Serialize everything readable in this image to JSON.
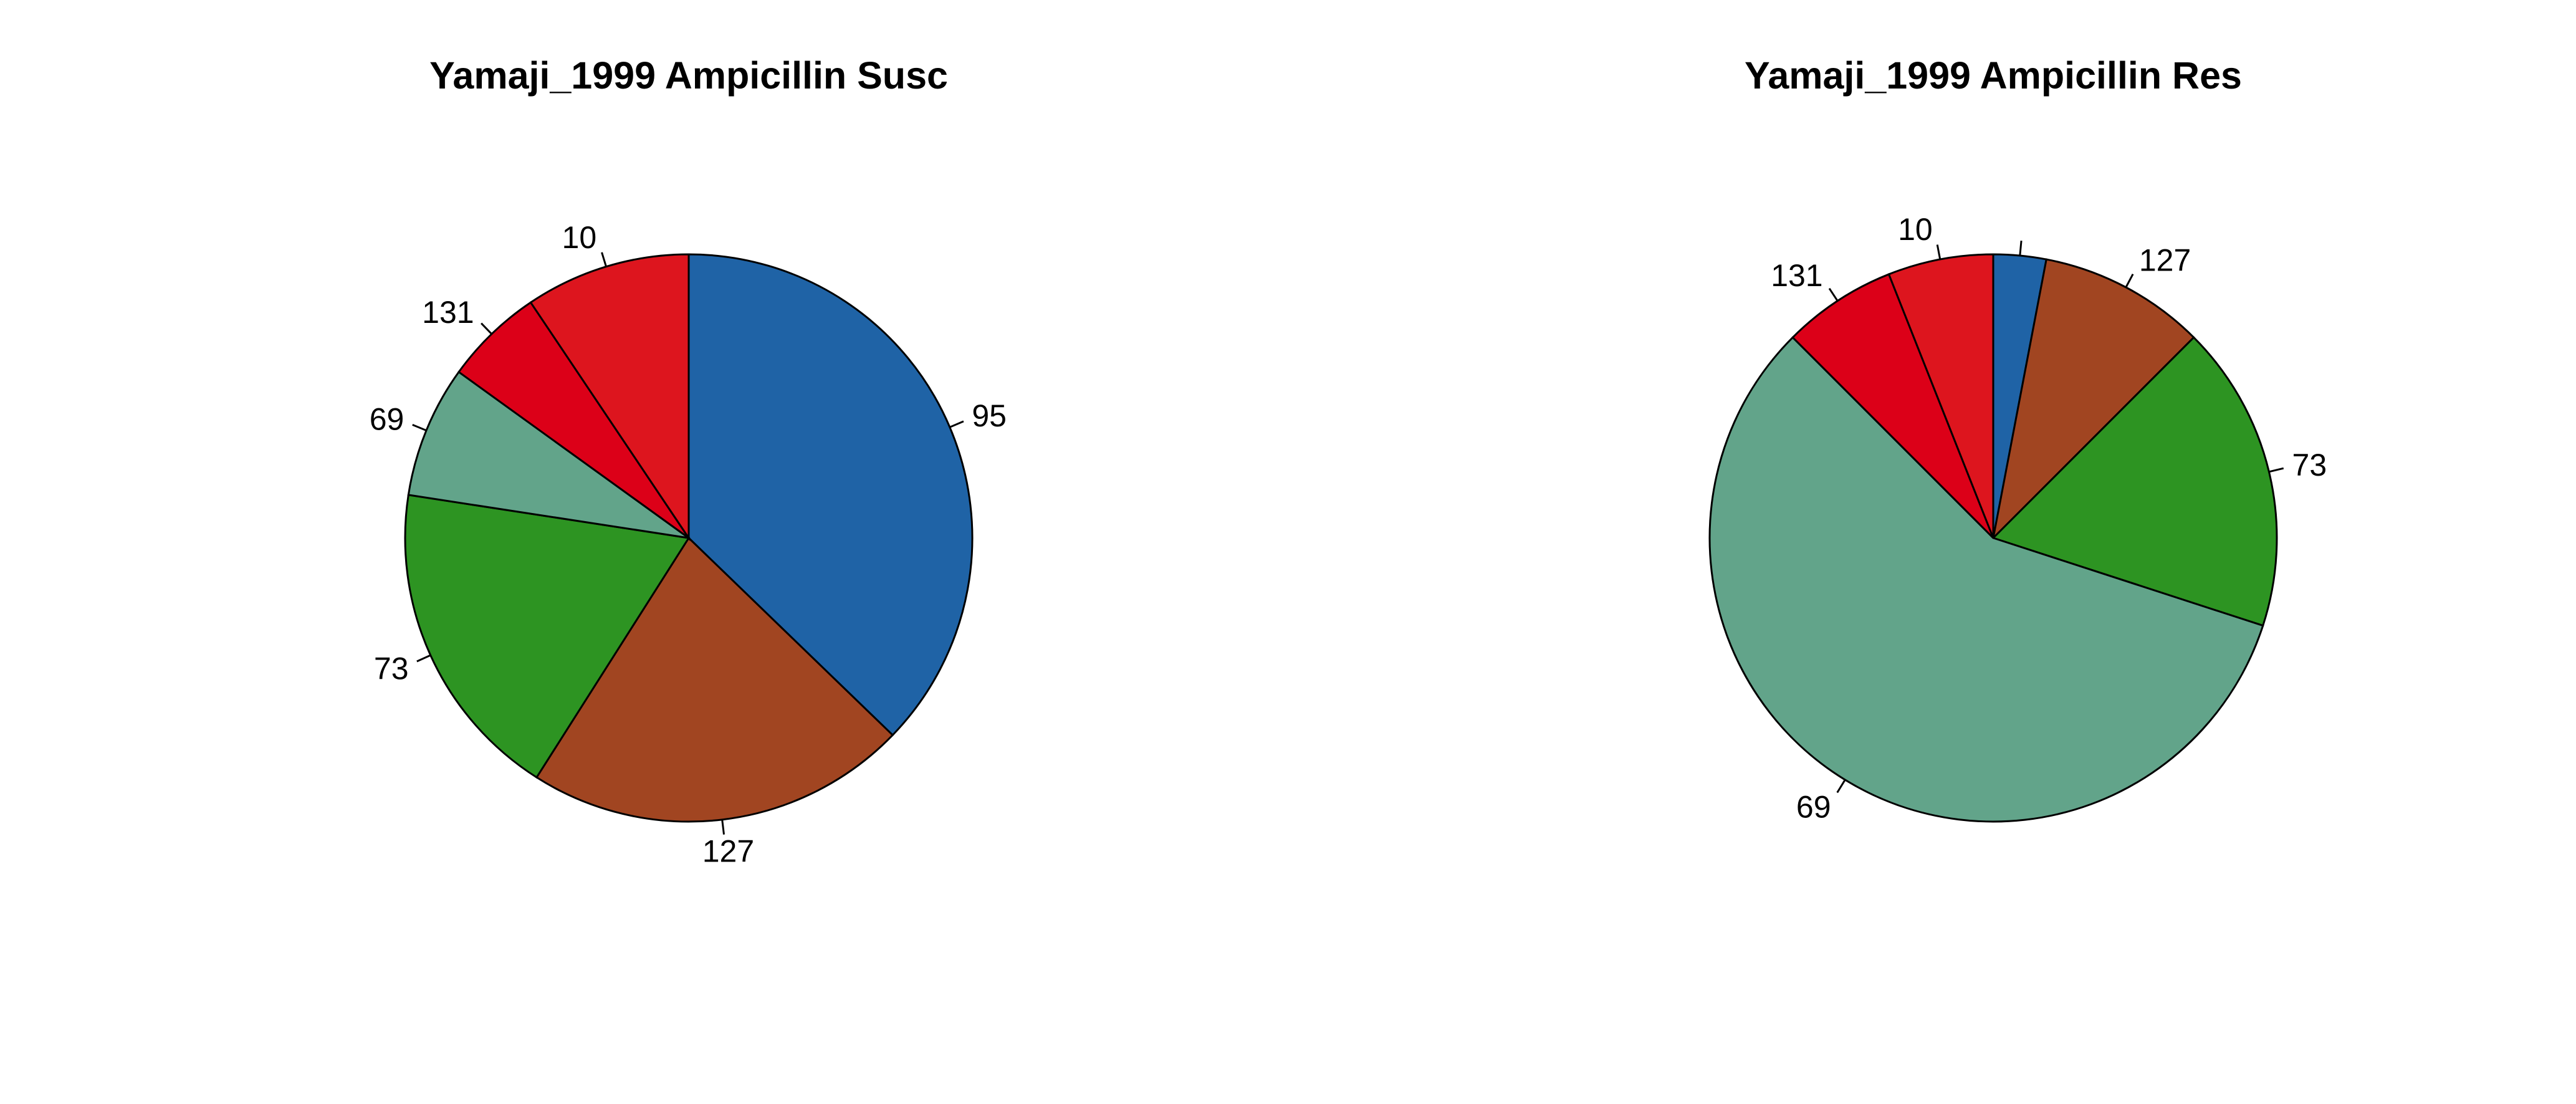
{
  "chart_data": [
    {
      "type": "pie",
      "title": "Yamaji_1999 Ampicillin Susc",
      "slices": [
        {
          "label": "95",
          "value": 37.6,
          "color": "#1f63a6"
        },
        {
          "label": "127",
          "value": 22.0,
          "color": "#a14521"
        },
        {
          "label": "73",
          "value": 18.6,
          "color": "#2d9422"
        },
        {
          "label": "69",
          "value": 7.6,
          "color": "#62a48a"
        },
        {
          "label": "131",
          "value": 5.7,
          "color": "#dc0018"
        },
        {
          "label": "10",
          "value": 9.5,
          "color": "#dd151e"
        }
      ]
    },
    {
      "type": "pie",
      "title": "Yamaji_1999 Ampicillin Res",
      "slices": [
        {
          "label": "",
          "value": 3.0,
          "color": "#1f63a6"
        },
        {
          "label": "127",
          "value": 9.5,
          "color": "#a14521"
        },
        {
          "label": "73",
          "value": 17.5,
          "color": "#2d9422"
        },
        {
          "label": "69",
          "value": 57.5,
          "color": "#62a48a"
        },
        {
          "label": "131",
          "value": 6.5,
          "color": "#dc0018"
        },
        {
          "label": "10",
          "value": 6.0,
          "color": "#dd151e"
        }
      ]
    }
  ]
}
